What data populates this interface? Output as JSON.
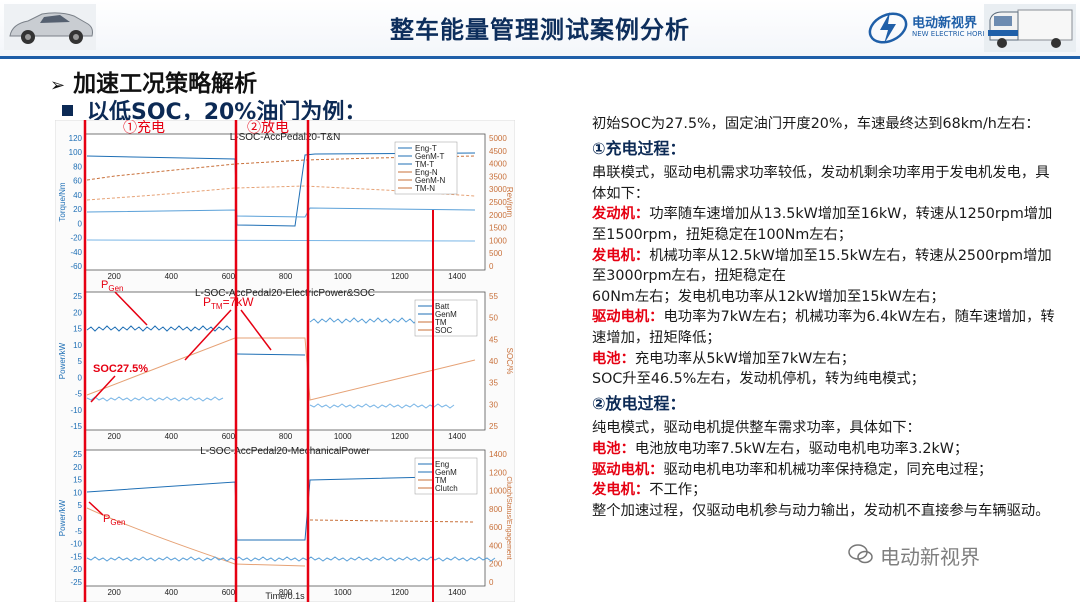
{
  "header": {
    "title": "整车能量管理测试案例分析",
    "logo_text": "电动新视界",
    "logo_sub": "NEW ELECTRIC HORIZON"
  },
  "section": {
    "title": "加速工况策略解析",
    "subtitle": "以低SOC，20%油门为例："
  },
  "figure": {
    "label_charge": "①充电",
    "label_discharge": "②放电",
    "p1": {
      "title": "L-SOC-AccPedal20-T&N",
      "left_axis": "Torque/Nm",
      "right_axis": "Rev/rpm",
      "yl": [
        "120",
        "100",
        "80",
        "60",
        "40",
        "20",
        "0",
        "-20",
        "-40",
        "-60"
      ],
      "yr": [
        "5000",
        "4500",
        "4000",
        "3500",
        "3000",
        "2500",
        "2000",
        "1500",
        "1000",
        "500",
        "0"
      ],
      "legend": [
        "Eng-T",
        "GenM-T",
        "TM-T",
        "Eng-N",
        "GenM-N",
        "TM-N"
      ]
    },
    "p2": {
      "title": "L-SOC-AccPedal20-ElectricPower&SOC",
      "left_axis": "Power/kW",
      "right_axis": "SOC/%",
      "yl": [
        "25",
        "20",
        "15",
        "10",
        "5",
        "0",
        "-5",
        "-10",
        "-15"
      ],
      "yr": [
        "55",
        "50",
        "45",
        "40",
        "35",
        "30",
        "25"
      ],
      "legend": [
        "Batt",
        "GenM",
        "TM",
        "SOC"
      ]
    },
    "p3": {
      "title": "L-SOC-AccPedal20-MechanicalPower",
      "left_axis": "Power/kW",
      "right_axis": "Clutch/Status/Engagement",
      "yl": [
        "25",
        "20",
        "15",
        "10",
        "5",
        "0",
        "-5",
        "-10",
        "-15",
        "-20",
        "-25"
      ],
      "yr": [
        "1400",
        "1200",
        "1000",
        "800",
        "600",
        "400",
        "200",
        "0"
      ],
      "legend": [
        "Eng",
        "GenM",
        "TM",
        "Clutch"
      ]
    },
    "xticks": [
      "200",
      "400",
      "600",
      "800",
      "1000",
      "1200",
      "1400"
    ],
    "xlabel": "Time/0.1s",
    "ann": {
      "pgen": "P",
      "pgen_sub": "Gen",
      "ptm": "P",
      "ptm_sub": "TM",
      "ptm_val": "=7kW",
      "soc": "SOC27.5%"
    }
  },
  "content": {
    "intro": "初始SOC为27.5%，固定油门开度20%，车速最终达到68km/h左右：",
    "charge_heading": "①充电过程：",
    "charge_desc": "串联模式，驱动电机需求功率较低，发动机剩余功率用于发电机发电，具体如下：",
    "c1_label": "发动机：",
    "c1_text": "功率随车速增加从13.5kW增加至16kW，转速从1250rpm增加至1500rpm，扭矩稳定在100Nm左右；",
    "c2_label": "发电机：",
    "c2_text": "机械功率从12.5kW增加至15.5kW左右，转速从2500rpm增加至3000rpm左右，扭矩稳定在",
    "c2_text2": "60Nm左右；发电机电功率从12kW增加至15kW左右；",
    "c3_label": "驱动电机：",
    "c3_text": "电功率为7kW左右；机械功率为6.4kW左右，随车速增加，转速增加，扭矩降低；",
    "c4_label": "电池：",
    "c4_text": "充电功率从5kW增加至7kW左右；",
    "c_end": "SOC升至46.5%左右，发动机停机，转为纯电模式；",
    "discharge_heading": "②放电过程：",
    "discharge_desc": "纯电模式，驱动电机提供整车需求功率，具体如下：",
    "d1_label": "电池：",
    "d1_text": "电池放电功率7.5kW左右，驱动电机电功率3.2kW；",
    "d2_label": "驱动电机：",
    "d2_text": "驱动电机电功率和机械功率保持稳定，同充电过程；",
    "d3_label": "发电机：",
    "d3_text": "不工作；",
    "d_end": "整个加速过程，仅驱动电机参与动力输出，发动机不直接参与车辆驱动。"
  },
  "watermark": "电动新视界"
}
